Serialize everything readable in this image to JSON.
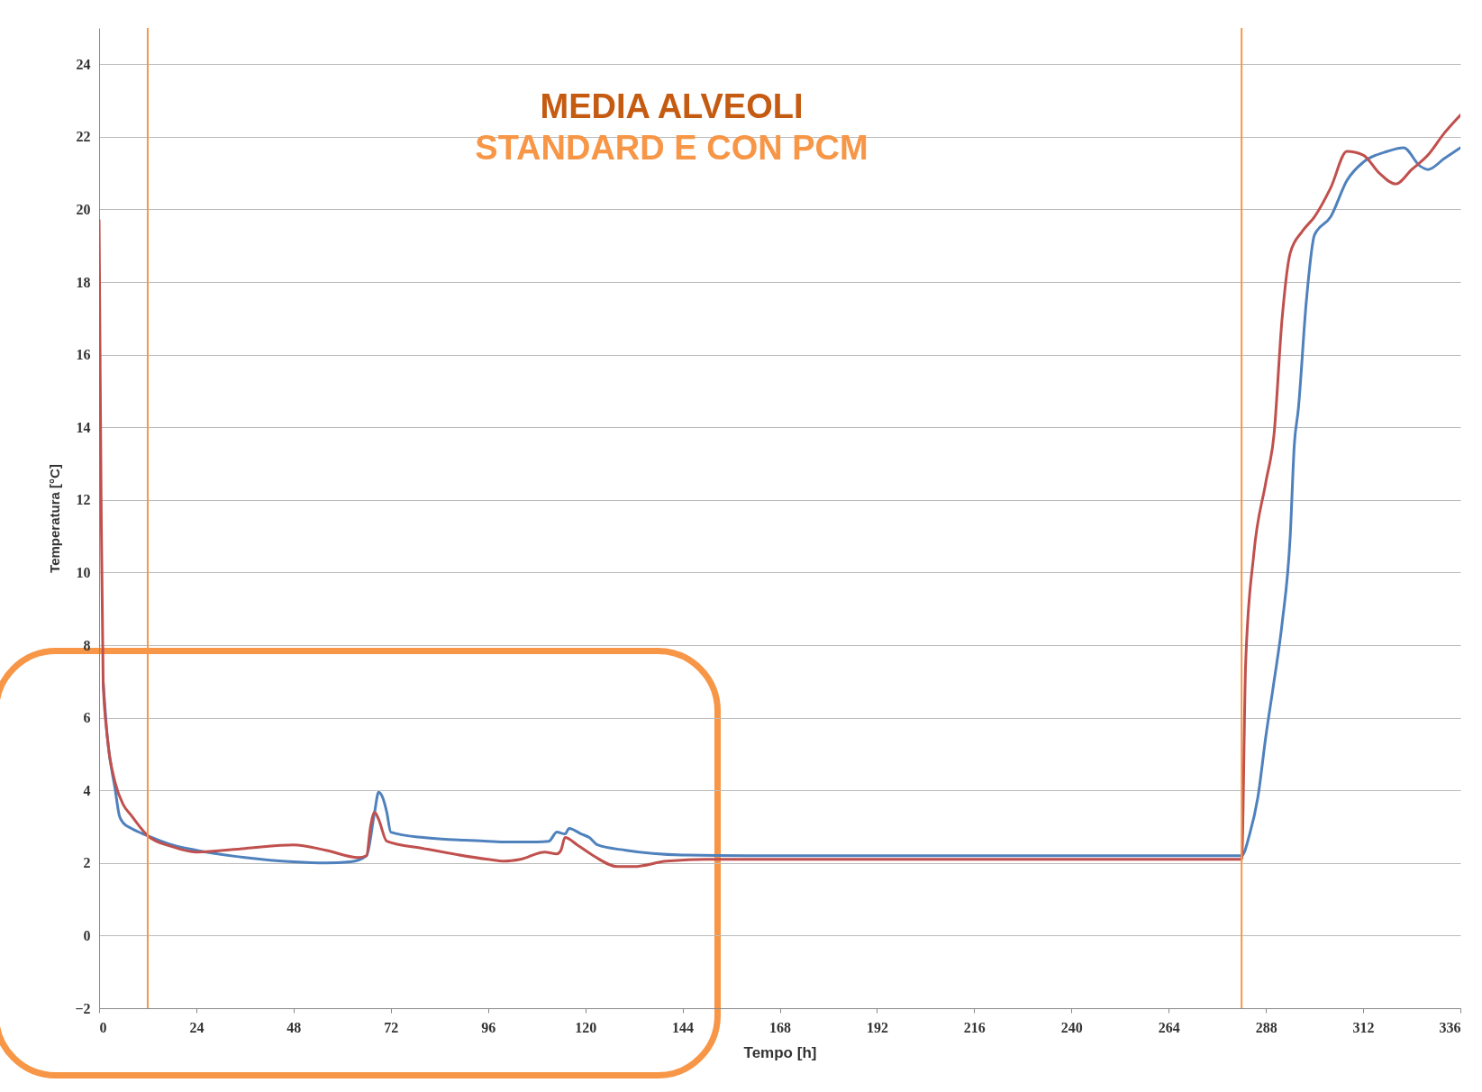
{
  "chart_data": {
    "type": "line",
    "title": "MEDIA ALVEOLI",
    "subtitle": "STANDARD E CON PCM",
    "xlabel": "Tempo [h]",
    "ylabel": "Temperatura [°C]",
    "xlim": [
      0,
      336
    ],
    "xticks": [
      0,
      24,
      48,
      72,
      96,
      120,
      144,
      168,
      192,
      216,
      240,
      264,
      288,
      312,
      336
    ],
    "ylim": [
      -2,
      25
    ],
    "yticks": [
      -2,
      0,
      2,
      4,
      6,
      8,
      10,
      12,
      14,
      16,
      18,
      20,
      22,
      24
    ],
    "grid": "y",
    "legend": false,
    "line_style": "solid",
    "marker": "none",
    "ref_lines": [
      {
        "axis": "x",
        "value": 12,
        "color": "#f79646"
      },
      {
        "axis": "x",
        "value": 282,
        "color": "#f79646"
      }
    ],
    "series": [
      {
        "color": "#4f81bd",
        "x": [
          1,
          2,
          4,
          5,
          6,
          8,
          12,
          18,
          24,
          36,
          48,
          56,
          62,
          66,
          68,
          69,
          70,
          71,
          72,
          80,
          96,
          100,
          108,
          111,
          113,
          115,
          116,
          119,
          121,
          123,
          130,
          144,
          160,
          200,
          260,
          282,
          284,
          286,
          288,
          290,
          292,
          294,
          295,
          296,
          298,
          300,
          304,
          308,
          312,
          318,
          322,
          326,
          328,
          332,
          336
        ],
        "values": [
          7,
          5.5,
          4,
          3.3,
          3.1,
          2.95,
          2.75,
          2.5,
          2.35,
          2.15,
          2.03,
          2.0,
          2.03,
          2.2,
          3.4,
          3.95,
          3.8,
          3.4,
          2.85,
          2.7,
          2.6,
          2.58,
          2.58,
          2.6,
          2.85,
          2.8,
          2.95,
          2.8,
          2.7,
          2.5,
          2.35,
          2.22,
          2.2,
          2.2,
          2.2,
          2.2,
          2.8,
          3.8,
          5.5,
          7,
          8.6,
          11,
          13.5,
          14.5,
          17.5,
          19.3,
          19.8,
          20.8,
          21.3,
          21.6,
          21.7,
          21.2,
          21.1,
          21.4,
          21.7
        ]
      },
      {
        "color": "#c0504d",
        "x": [
          0,
          0.5,
          1,
          2,
          4,
          6,
          8,
          12,
          18,
          24,
          36,
          48,
          56,
          64,
          66,
          67,
          68,
          69,
          71,
          80,
          96,
          100,
          104,
          110,
          113,
          114,
          115,
          118,
          122,
          128,
          132,
          140,
          150,
          200,
          282,
          283,
          285,
          288,
          290,
          292,
          294,
          297,
          300,
          304,
          308,
          312,
          316,
          320,
          324,
          328,
          332,
          336
        ],
        "values": [
          19.7,
          12,
          7,
          5.5,
          4.2,
          3.6,
          3.3,
          2.75,
          2.45,
          2.3,
          2.4,
          2.5,
          2.35,
          2.15,
          2.2,
          3.0,
          3.4,
          3.2,
          2.6,
          2.4,
          2.1,
          2.05,
          2.1,
          2.3,
          2.25,
          2.35,
          2.7,
          2.5,
          2.2,
          1.9,
          1.9,
          2.05,
          2.1,
          2.1,
          2.1,
          7.5,
          10.5,
          12.5,
          13.8,
          17,
          18.8,
          19.4,
          19.8,
          20.6,
          21.6,
          21.5,
          21.0,
          20.7,
          21.1,
          21.5,
          22.1,
          22.6
        ]
      }
    ]
  }
}
